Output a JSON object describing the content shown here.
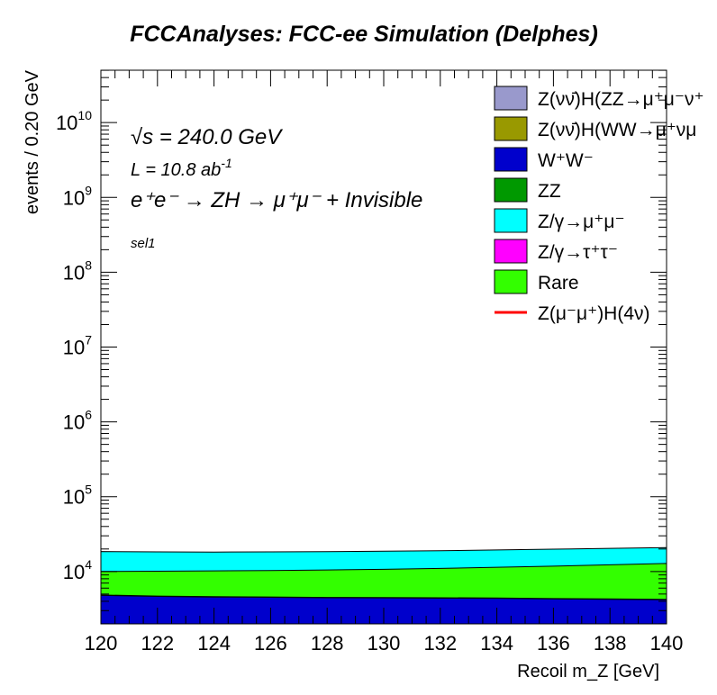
{
  "chart_data": {
    "type": "area",
    "title": "FCCAnalyses: FCC-ee Simulation (Delphes)",
    "xlabel": "Recoil m_Z [GeV]",
    "ylabel": "events / 0.20 GeV",
    "xlim": [
      120,
      140
    ],
    "ylim_log10": [
      3.3,
      10.7
    ],
    "yscale": "log",
    "x_ticks": [
      "120",
      "122",
      "124",
      "126",
      "128",
      "130",
      "132",
      "134",
      "136",
      "138",
      "140"
    ],
    "y_ticks": [
      {
        "base": "10",
        "exp": "4"
      },
      {
        "base": "10",
        "exp": "5"
      },
      {
        "base": "10",
        "exp": "6"
      },
      {
        "base": "10",
        "exp": "7"
      },
      {
        "base": "10",
        "exp": "8"
      },
      {
        "base": "10",
        "exp": "9"
      },
      {
        "base": "10",
        "exp": "10"
      }
    ],
    "x": [
      120,
      122,
      124,
      126,
      128,
      130,
      132,
      134,
      136,
      138,
      140
    ],
    "stack_series": [
      {
        "name": "W+W-",
        "color": "#0000cc",
        "cumulative": [
          4800,
          4650,
          4560,
          4520,
          4460,
          4440,
          4400,
          4380,
          4300,
          4250,
          4200
        ]
      },
      {
        "name": "ZZ",
        "color": "#009900",
        "cumulative": [
          4850,
          4700,
          4610,
          4570,
          4510,
          4490,
          4450,
          4430,
          4350,
          4300,
          4250
        ]
      },
      {
        "name": "Rare",
        "color": "#33ff00",
        "cumulative": [
          10000,
          10100,
          10200,
          10300,
          10500,
          10700,
          11000,
          11400,
          11800,
          12300,
          12800
        ]
      },
      {
        "name": "Z/γ→μ+μ-",
        "color": "#00ffff",
        "cumulative": [
          18500,
          18300,
          18200,
          18300,
          18400,
          18700,
          19000,
          19400,
          19900,
          20400,
          20900
        ]
      }
    ],
    "legend_placement": "top-right",
    "legend": [
      {
        "label": "Z(νν̄)H(ZZ→μ⁺μ⁻ν⁺",
        "color": "#9999cc",
        "kind": "box"
      },
      {
        "label": "Z(νν̄)H(WW→μ⁺νμ",
        "color": "#999900",
        "kind": "box"
      },
      {
        "label": "W⁺W⁻",
        "color": "#0000cc",
        "kind": "box"
      },
      {
        "label": "ZZ",
        "color": "#009900",
        "kind": "box"
      },
      {
        "label": "Z/γ→μ⁺μ⁻",
        "color": "#00ffff",
        "kind": "box"
      },
      {
        "label": "Z/γ→τ⁺τ⁻",
        "color": "#ff00ff",
        "kind": "box"
      },
      {
        "label": "Rare",
        "color": "#33ff00",
        "kind": "box"
      },
      {
        "label": "Z(μ⁻μ⁺)H(4ν)",
        "color": "#ff0000",
        "kind": "line"
      }
    ],
    "annotations": {
      "sqrt_s": "√s = 240.0 GeV",
      "lumi_base": "L = 10.8 ab",
      "lumi_exp": "-1",
      "process": "e⁺e⁻ → ZH → μ⁺μ⁻ + Invisible",
      "selection": "sel1"
    }
  }
}
